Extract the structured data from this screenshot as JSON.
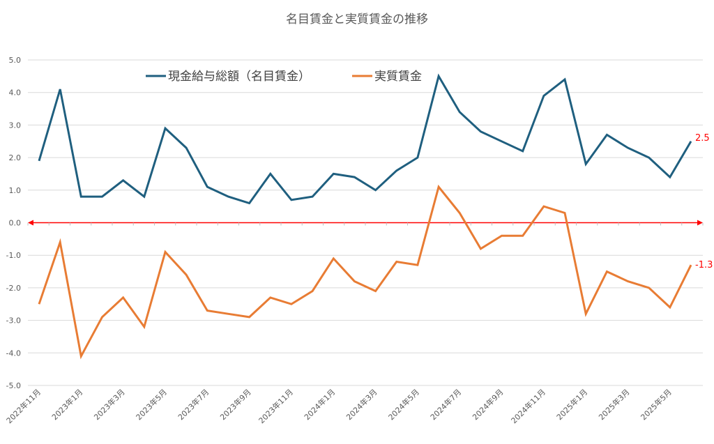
{
  "chart_data": {
    "type": "line",
    "title": "名目賃金と実質賃金の推移",
    "xlabel": "",
    "ylabel": "",
    "ylim": [
      -5.0,
      5.0
    ],
    "yticks": [
      "5.0",
      "4.0",
      "3.0",
      "2.0",
      "1.0",
      "0.0",
      "-1.0",
      "-2.0",
      "-3.0",
      "-4.0",
      "-5.0"
    ],
    "ytick_values": [
      5,
      4,
      3,
      2,
      1,
      0,
      -1,
      -2,
      -3,
      -4,
      -5
    ],
    "x_tick_labels": [
      "2022年11月",
      "2023年1月",
      "2023年3月",
      "2023年5月",
      "2023年7月",
      "2023年9月",
      "2023年11月",
      "2024年1月",
      "2024年3月",
      "2024年5月",
      "2024年7月",
      "2024年9月",
      "2024年11月",
      "2025年1月",
      "2025年3月",
      "2025年5月"
    ],
    "categories": [
      "2022-11",
      "2022-12",
      "2023-01",
      "2023-02",
      "2023-03",
      "2023-04",
      "2023-05",
      "2023-06",
      "2023-07",
      "2023-08",
      "2023-09",
      "2023-10",
      "2023-11",
      "2023-12",
      "2024-01",
      "2024-02",
      "2024-03",
      "2024-04",
      "2024-05",
      "2024-06",
      "2024-07",
      "2024-08",
      "2024-09",
      "2024-10",
      "2024-11",
      "2024-12",
      "2025-01",
      "2025-02",
      "2025-03",
      "2025-04",
      "2025-05",
      "2025-06"
    ],
    "series": [
      {
        "name": "現金給与総額（名目賃金）",
        "color": "#1f5f7f",
        "values": [
          1.9,
          4.1,
          0.8,
          0.8,
          1.3,
          0.8,
          2.9,
          2.3,
          1.1,
          0.8,
          0.6,
          1.5,
          0.7,
          0.8,
          1.5,
          1.4,
          1.0,
          1.6,
          2.0,
          4.5,
          3.4,
          2.8,
          2.5,
          2.2,
          3.9,
          4.4,
          1.8,
          2.7,
          2.3,
          2.0,
          1.4,
          2.5
        ],
        "end_label": "2.5"
      },
      {
        "name": "実質賃金",
        "color": "#e87c34",
        "values": [
          -2.5,
          -0.6,
          -4.1,
          -2.9,
          -2.3,
          -3.2,
          -0.9,
          -1.6,
          -2.7,
          -2.8,
          -2.9,
          -2.3,
          -2.5,
          -2.1,
          -1.1,
          -1.8,
          -2.1,
          -1.2,
          -1.3,
          1.1,
          0.3,
          -0.8,
          -0.4,
          -0.4,
          0.5,
          0.3,
          -2.8,
          -1.5,
          -1.8,
          -2.0,
          -2.6,
          -1.3
        ],
        "end_label": "-1.3"
      }
    ],
    "grid": true,
    "legend": "top",
    "zero_line_color": "#ff0000",
    "end_label_color": "#ff0000"
  }
}
